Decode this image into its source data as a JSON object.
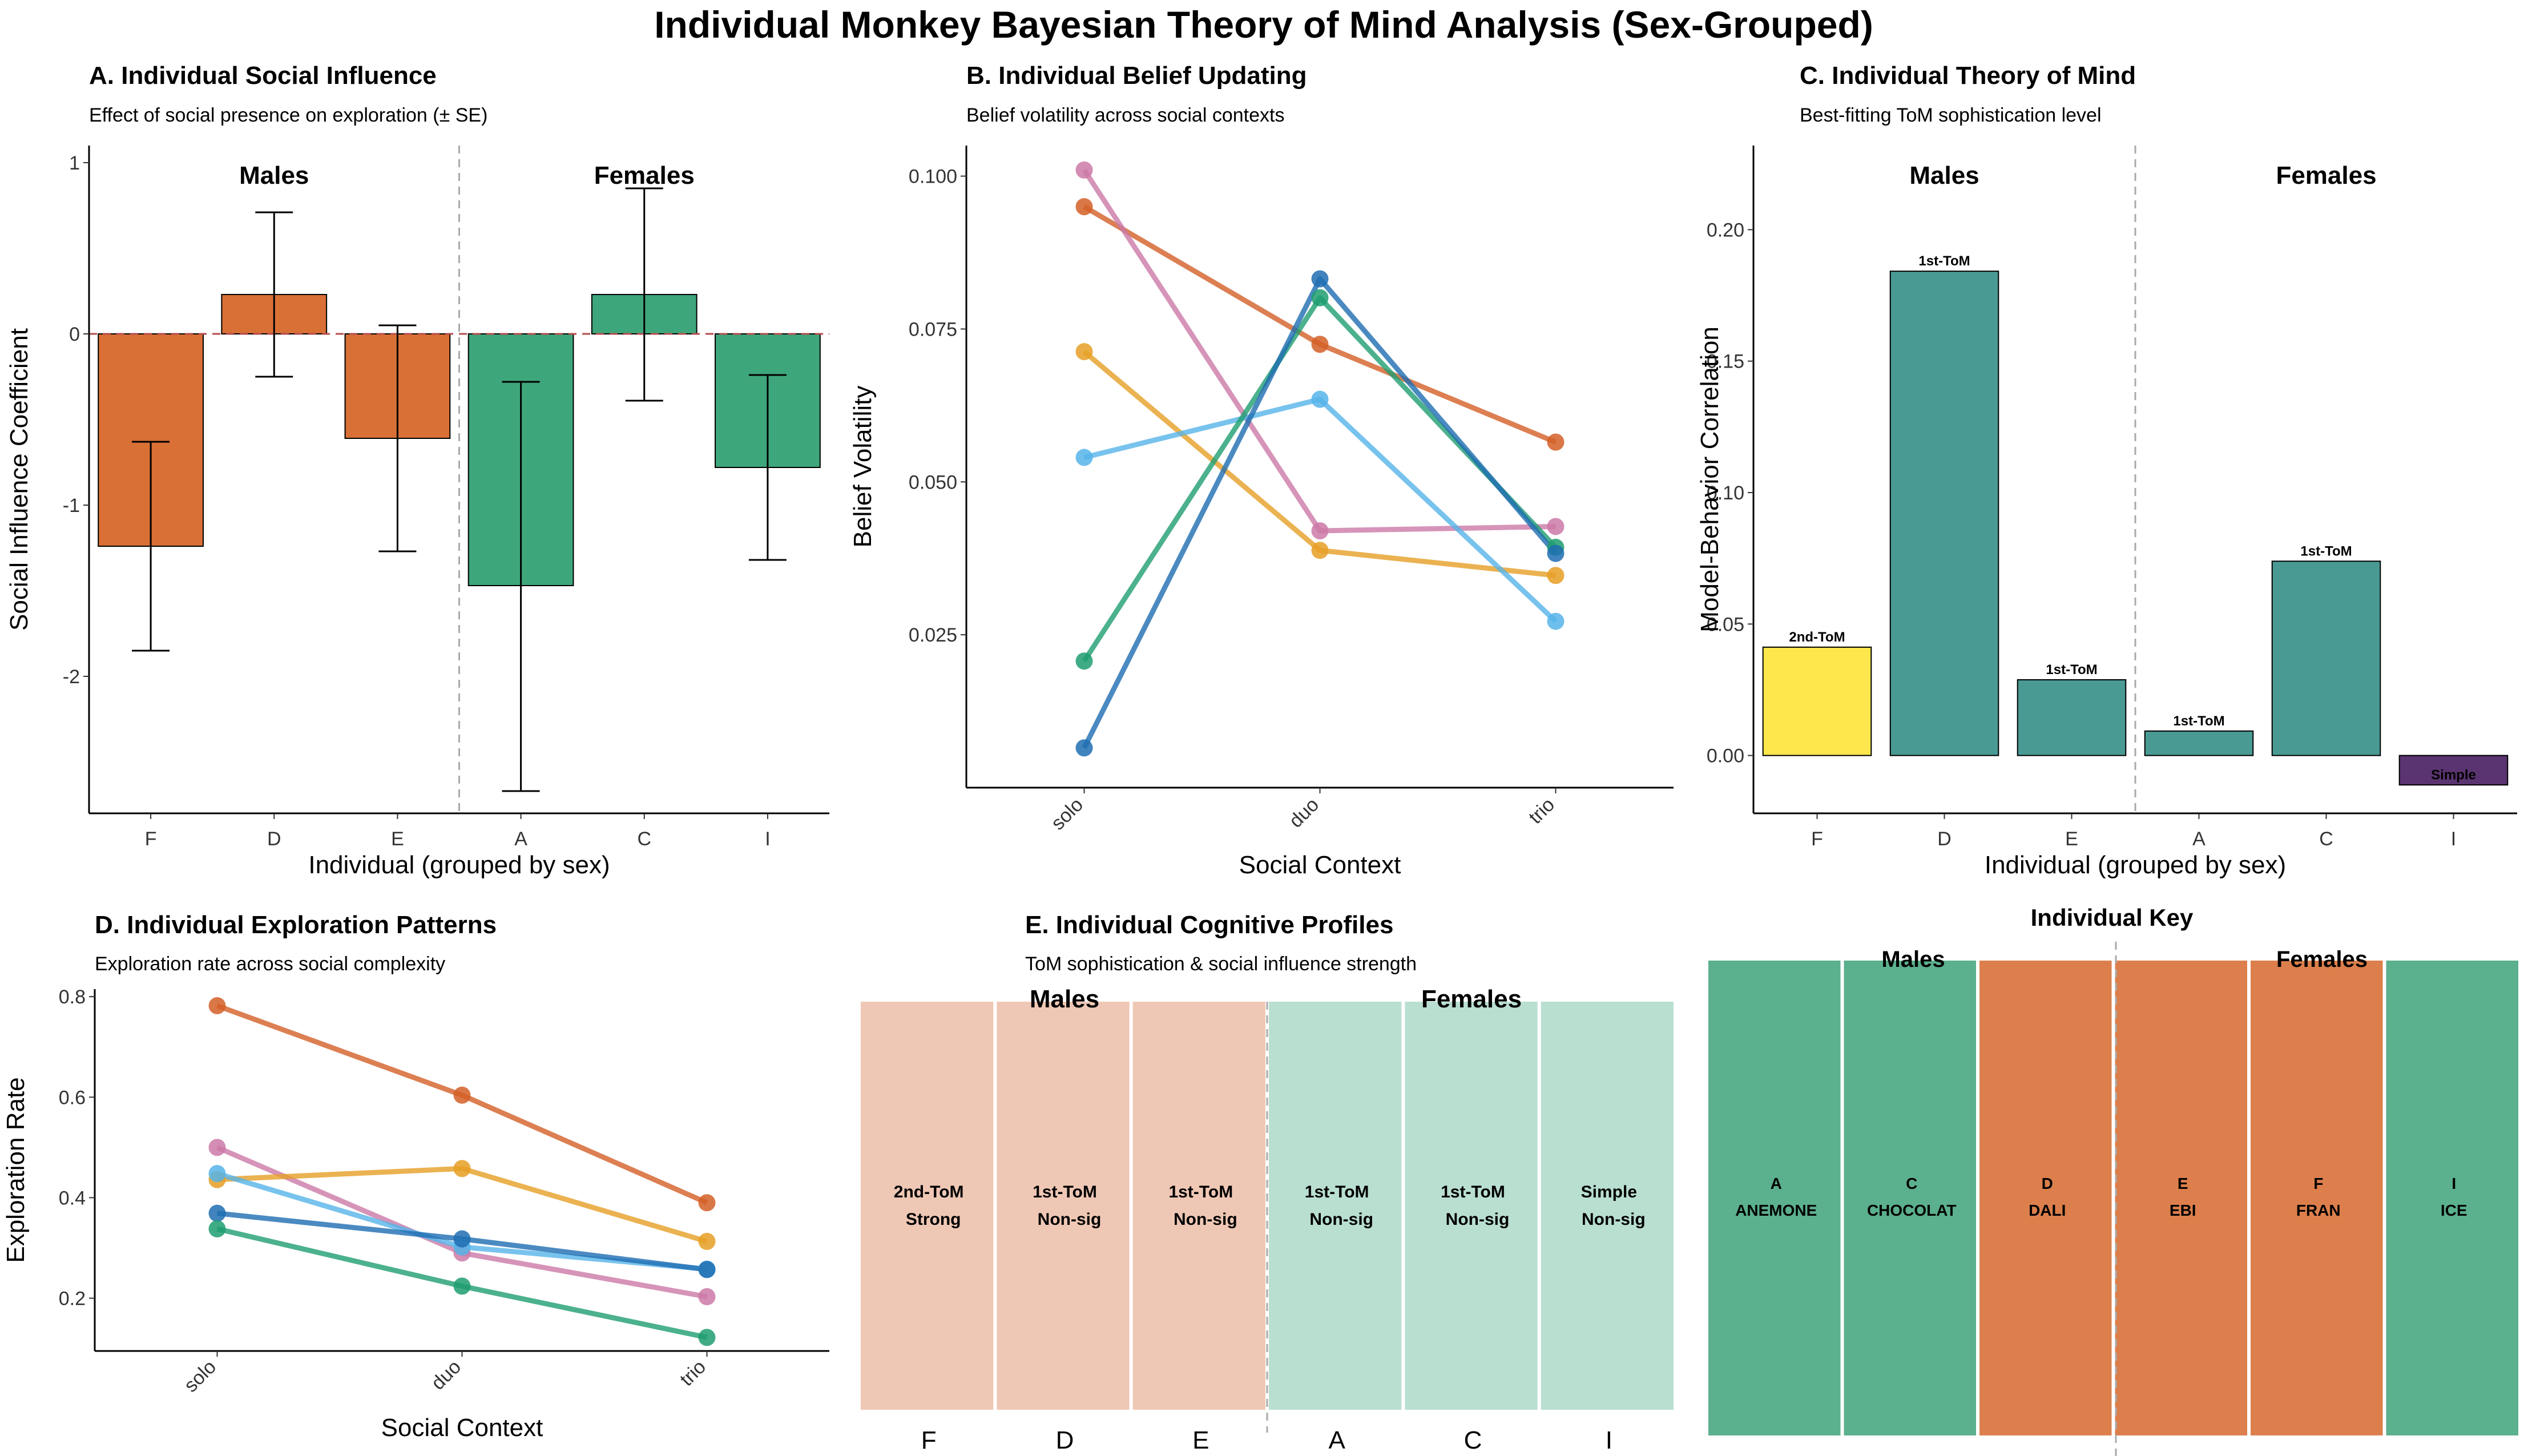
{
  "figure": {
    "title": "Individual Monkey Bayesian Theory of Mind Analysis (Sex-Grouped)"
  },
  "colors": {
    "male": "#D97036",
    "female": "#3EA67B",
    "tom_2nd": "#FDE74C",
    "tom_1st": "#4A9A94",
    "tom_simple": "#5A3470",
    "male_light": "#EFC8B5",
    "female_light": "#B9DFD1",
    "key_male": "#DC7F4C",
    "key_female": "#5BB08D"
  },
  "chart_data": [
    {
      "id": "A",
      "type": "bar",
      "title": "A. Individual Social Influence",
      "subtitle": "Effect of social presence on exploration (± SE)",
      "xlabel": "Individual (grouped by sex)",
      "ylabel": "Social Influence Coefficient",
      "ylim": [
        -2.8,
        1.1
      ],
      "yticks": [
        -2,
        -1,
        0,
        1
      ],
      "ytick_labels": [
        "-2",
        "-1",
        "0",
        "1"
      ],
      "group_labels": [
        "Males",
        "Females"
      ],
      "categories": [
        "F",
        "D",
        "E",
        "A",
        "C",
        "I"
      ],
      "sex": [
        "male",
        "male",
        "male",
        "female",
        "female",
        "female"
      ],
      "values": [
        -1.24,
        0.23,
        -0.61,
        -1.47,
        0.23,
        -0.78
      ],
      "se_low": [
        -1.85,
        -0.25,
        -1.27,
        -2.67,
        -0.39,
        -1.32
      ],
      "se_high": [
        -0.63,
        0.71,
        0.05,
        -0.28,
        0.85,
        -0.24
      ]
    },
    {
      "id": "B",
      "type": "line",
      "title": "B. Individual Belief Updating",
      "subtitle": "Belief volatility across social contexts",
      "xlabel": "Social Context",
      "ylabel": "Belief Volatility",
      "categories": [
        "solo",
        "duo",
        "trio"
      ],
      "ylim": [
        0.0,
        0.105
      ],
      "yticks": [
        0.025,
        0.05,
        0.075,
        0.1
      ],
      "ytick_labels": [
        "0.025",
        "0.050",
        "0.075",
        "0.100"
      ],
      "series": [
        {
          "color": "#D35F27",
          "values": [
            0.095,
            0.0725,
            0.0565
          ]
        },
        {
          "color": "#CC79A7",
          "values": [
            0.101,
            0.042,
            0.0427
          ]
        },
        {
          "color": "#E69F25",
          "values": [
            0.0713,
            0.0388,
            0.0347
          ]
        },
        {
          "color": "#56B4E9",
          "values": [
            0.054,
            0.0635,
            0.0272
          ]
        },
        {
          "color": "#1F9E70",
          "values": [
            0.0207,
            0.0801,
            0.0393
          ]
        },
        {
          "color": "#1E6DB2",
          "values": [
            0.0065,
            0.0832,
            0.0383
          ]
        }
      ]
    },
    {
      "id": "C",
      "type": "bar",
      "title": "C. Individual Theory of Mind",
      "subtitle": "Best-fitting ToM sophistication level",
      "xlabel": "Individual (grouped by sex)",
      "ylabel": "Model-Behavior Correlation",
      "ylim": [
        -0.022,
        0.232
      ],
      "yticks": [
        0.0,
        0.05,
        0.1,
        0.15,
        0.2
      ],
      "ytick_labels": [
        "0.00",
        "0.05",
        "0.10",
        "0.15",
        "0.20"
      ],
      "group_labels": [
        "Males",
        "Females"
      ],
      "categories": [
        "F",
        "D",
        "E",
        "A",
        "C",
        "I"
      ],
      "values": [
        0.0412,
        0.1842,
        0.0288,
        0.0093,
        0.0739,
        -0.0112
      ],
      "levels": [
        "2nd-ToM",
        "1st-ToM",
        "1st-ToM",
        "1st-ToM",
        "1st-ToM",
        "Simple"
      ],
      "level_key": [
        "tom_2nd",
        "tom_1st",
        "tom_1st",
        "tom_1st",
        "tom_1st",
        "tom_simple"
      ]
    },
    {
      "id": "D",
      "type": "line",
      "title": "D. Individual Exploration Patterns",
      "subtitle": "Exploration rate across social complexity",
      "xlabel": "Social Context",
      "ylabel": "Exploration Rate",
      "categories": [
        "solo",
        "duo",
        "trio"
      ],
      "ylim": [
        0.095,
        0.815
      ],
      "yticks": [
        0.2,
        0.4,
        0.6,
        0.8
      ],
      "ytick_labels": [
        "0.2",
        "0.4",
        "0.6",
        "0.8"
      ],
      "series": [
        {
          "color": "#D35F27",
          "values": [
            0.782,
            0.604,
            0.39
          ]
        },
        {
          "color": "#CC79A7",
          "values": [
            0.5,
            0.29,
            0.203
          ]
        },
        {
          "color": "#E69F25",
          "values": [
            0.436,
            0.458,
            0.313
          ]
        },
        {
          "color": "#56B4E9",
          "values": [
            0.448,
            0.302,
            0.258
          ]
        },
        {
          "color": "#1E6DB2",
          "values": [
            0.369,
            0.318,
            0.257
          ]
        },
        {
          "color": "#1F9E70",
          "values": [
            0.338,
            0.224,
            0.122
          ]
        }
      ]
    },
    {
      "id": "E",
      "type": "table",
      "title": "E. Individual Cognitive Profiles",
      "subtitle": "ToM sophistication & social influence strength",
      "group_labels": [
        "Males",
        "Females"
      ],
      "categories": [
        "F",
        "D",
        "E",
        "A",
        "C",
        "I"
      ],
      "sex": [
        "male",
        "male",
        "male",
        "female",
        "female",
        "female"
      ],
      "line1": [
        "2nd-ToM",
        "1st-ToM",
        "1st-ToM",
        "1st-ToM",
        "1st-ToM",
        "Simple"
      ],
      "line2": [
        "Strong",
        "Non-sig",
        "Non-sig",
        "Non-sig",
        "Non-sig",
        "Non-sig"
      ]
    },
    {
      "id": "F",
      "type": "table",
      "title": "Individual Key",
      "group_labels": [
        "Males",
        "Females"
      ],
      "codes": [
        "A",
        "C",
        "D",
        "E",
        "F",
        "I"
      ],
      "names": [
        "ANEMONE",
        "CHOCOLAT",
        "DALI",
        "EBI",
        "FRAN",
        "ICE"
      ],
      "sex": [
        "female",
        "female",
        "male",
        "male",
        "male",
        "female"
      ]
    }
  ]
}
